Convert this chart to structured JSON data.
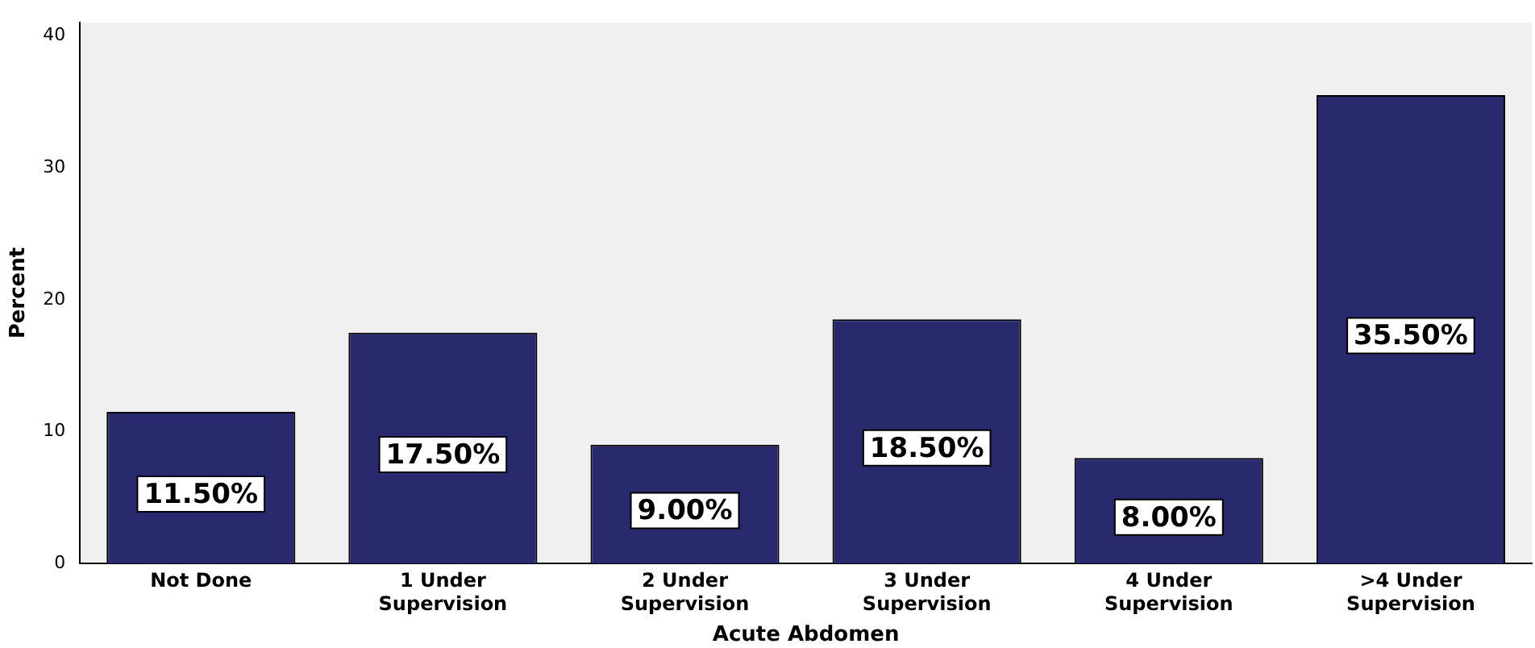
{
  "chart_data": {
    "type": "bar",
    "xlabel": "Acute Abdomen",
    "ylabel": "Percent",
    "categories": [
      "Not Done",
      "1 Under\nSupervision",
      "2 Under\nSupervision",
      "3 Under\nSupervision",
      "4 Under\nSupervision",
      ">4 Under\nSupervision"
    ],
    "values": [
      11.5,
      17.5,
      9.0,
      18.5,
      8.0,
      35.5
    ],
    "value_labels": [
      "11.50%",
      "17.50%",
      "9.00%",
      "18.50%",
      "8.00%",
      "35.50%"
    ],
    "color": "#29296e",
    "ylim": [
      0,
      41
    ],
    "yticks": [
      0,
      10,
      20,
      30,
      40
    ],
    "grid": false,
    "legend": false
  }
}
